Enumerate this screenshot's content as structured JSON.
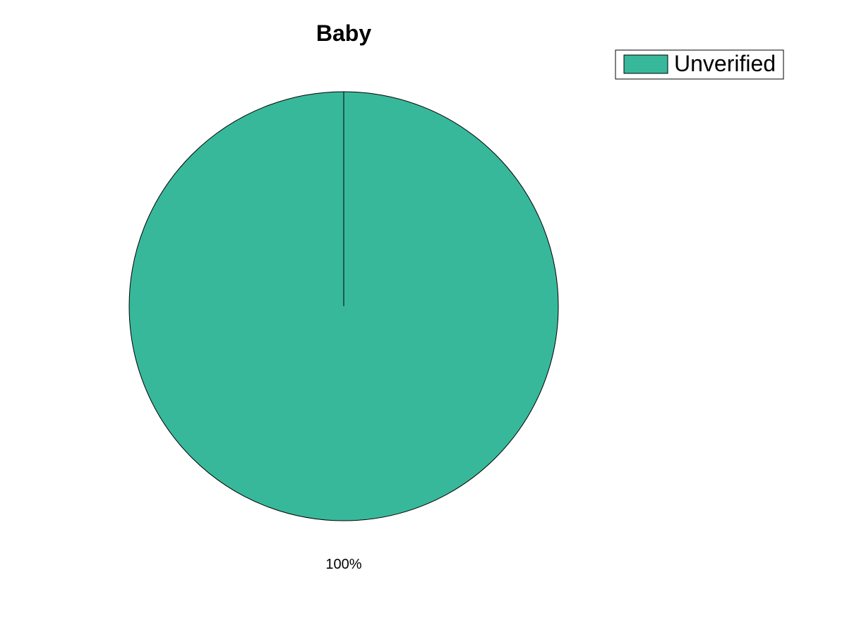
{
  "chart_data": {
    "type": "pie",
    "title": "Baby",
    "slices": [
      {
        "label": "Unverified",
        "value": 100,
        "display": "100%",
        "color": "#38b89b"
      }
    ],
    "legend": {
      "placement": "top-right",
      "entries": [
        "Unverified"
      ]
    },
    "start_angle": "top",
    "direction": "clockwise"
  }
}
